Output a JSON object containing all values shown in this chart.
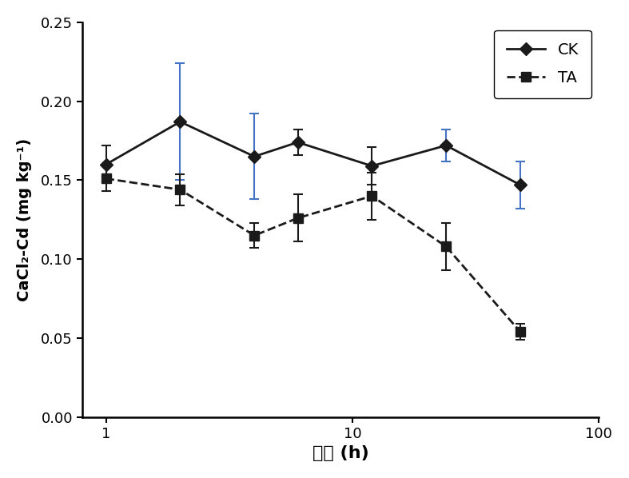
{
  "ck_x": [
    1,
    2,
    4,
    6,
    12,
    24,
    48
  ],
  "ck_y": [
    0.16,
    0.187,
    0.165,
    0.174,
    0.159,
    0.172,
    0.147
  ],
  "ck_yerr": [
    0.012,
    0.037,
    0.027,
    0.008,
    0.012,
    0.01,
    0.015
  ],
  "ck_err_color": [
    "#1a1a1a",
    "#4472c4",
    "#4472c4",
    "#1a1a1a",
    "#1a1a1a",
    "#4472c4",
    "#4472c4"
  ],
  "ta_x": [
    1,
    2,
    4,
    6,
    12,
    24,
    48
  ],
  "ta_y": [
    0.151,
    0.144,
    0.115,
    0.126,
    0.14,
    0.108,
    0.054
  ],
  "ta_yerr": [
    0.008,
    0.01,
    0.008,
    0.015,
    0.015,
    0.015,
    0.005
  ],
  "ta_err_color": "#1a1a1a",
  "ck_line_color": "#1a1a1a",
  "ta_line_color": "#1a1a1a",
  "xlabel": "时间 (h)",
  "ylabel": "CaCl₂-Cd (mg kg⁻¹)",
  "ylim": [
    0.0,
    0.25
  ],
  "xlim": [
    0.8,
    100
  ],
  "yticks": [
    0.0,
    0.05,
    0.1,
    0.15,
    0.2,
    0.25
  ],
  "legend_labels": [
    "CK",
    "TA"
  ],
  "figsize": [
    7.87,
    5.98
  ],
  "dpi": 100
}
